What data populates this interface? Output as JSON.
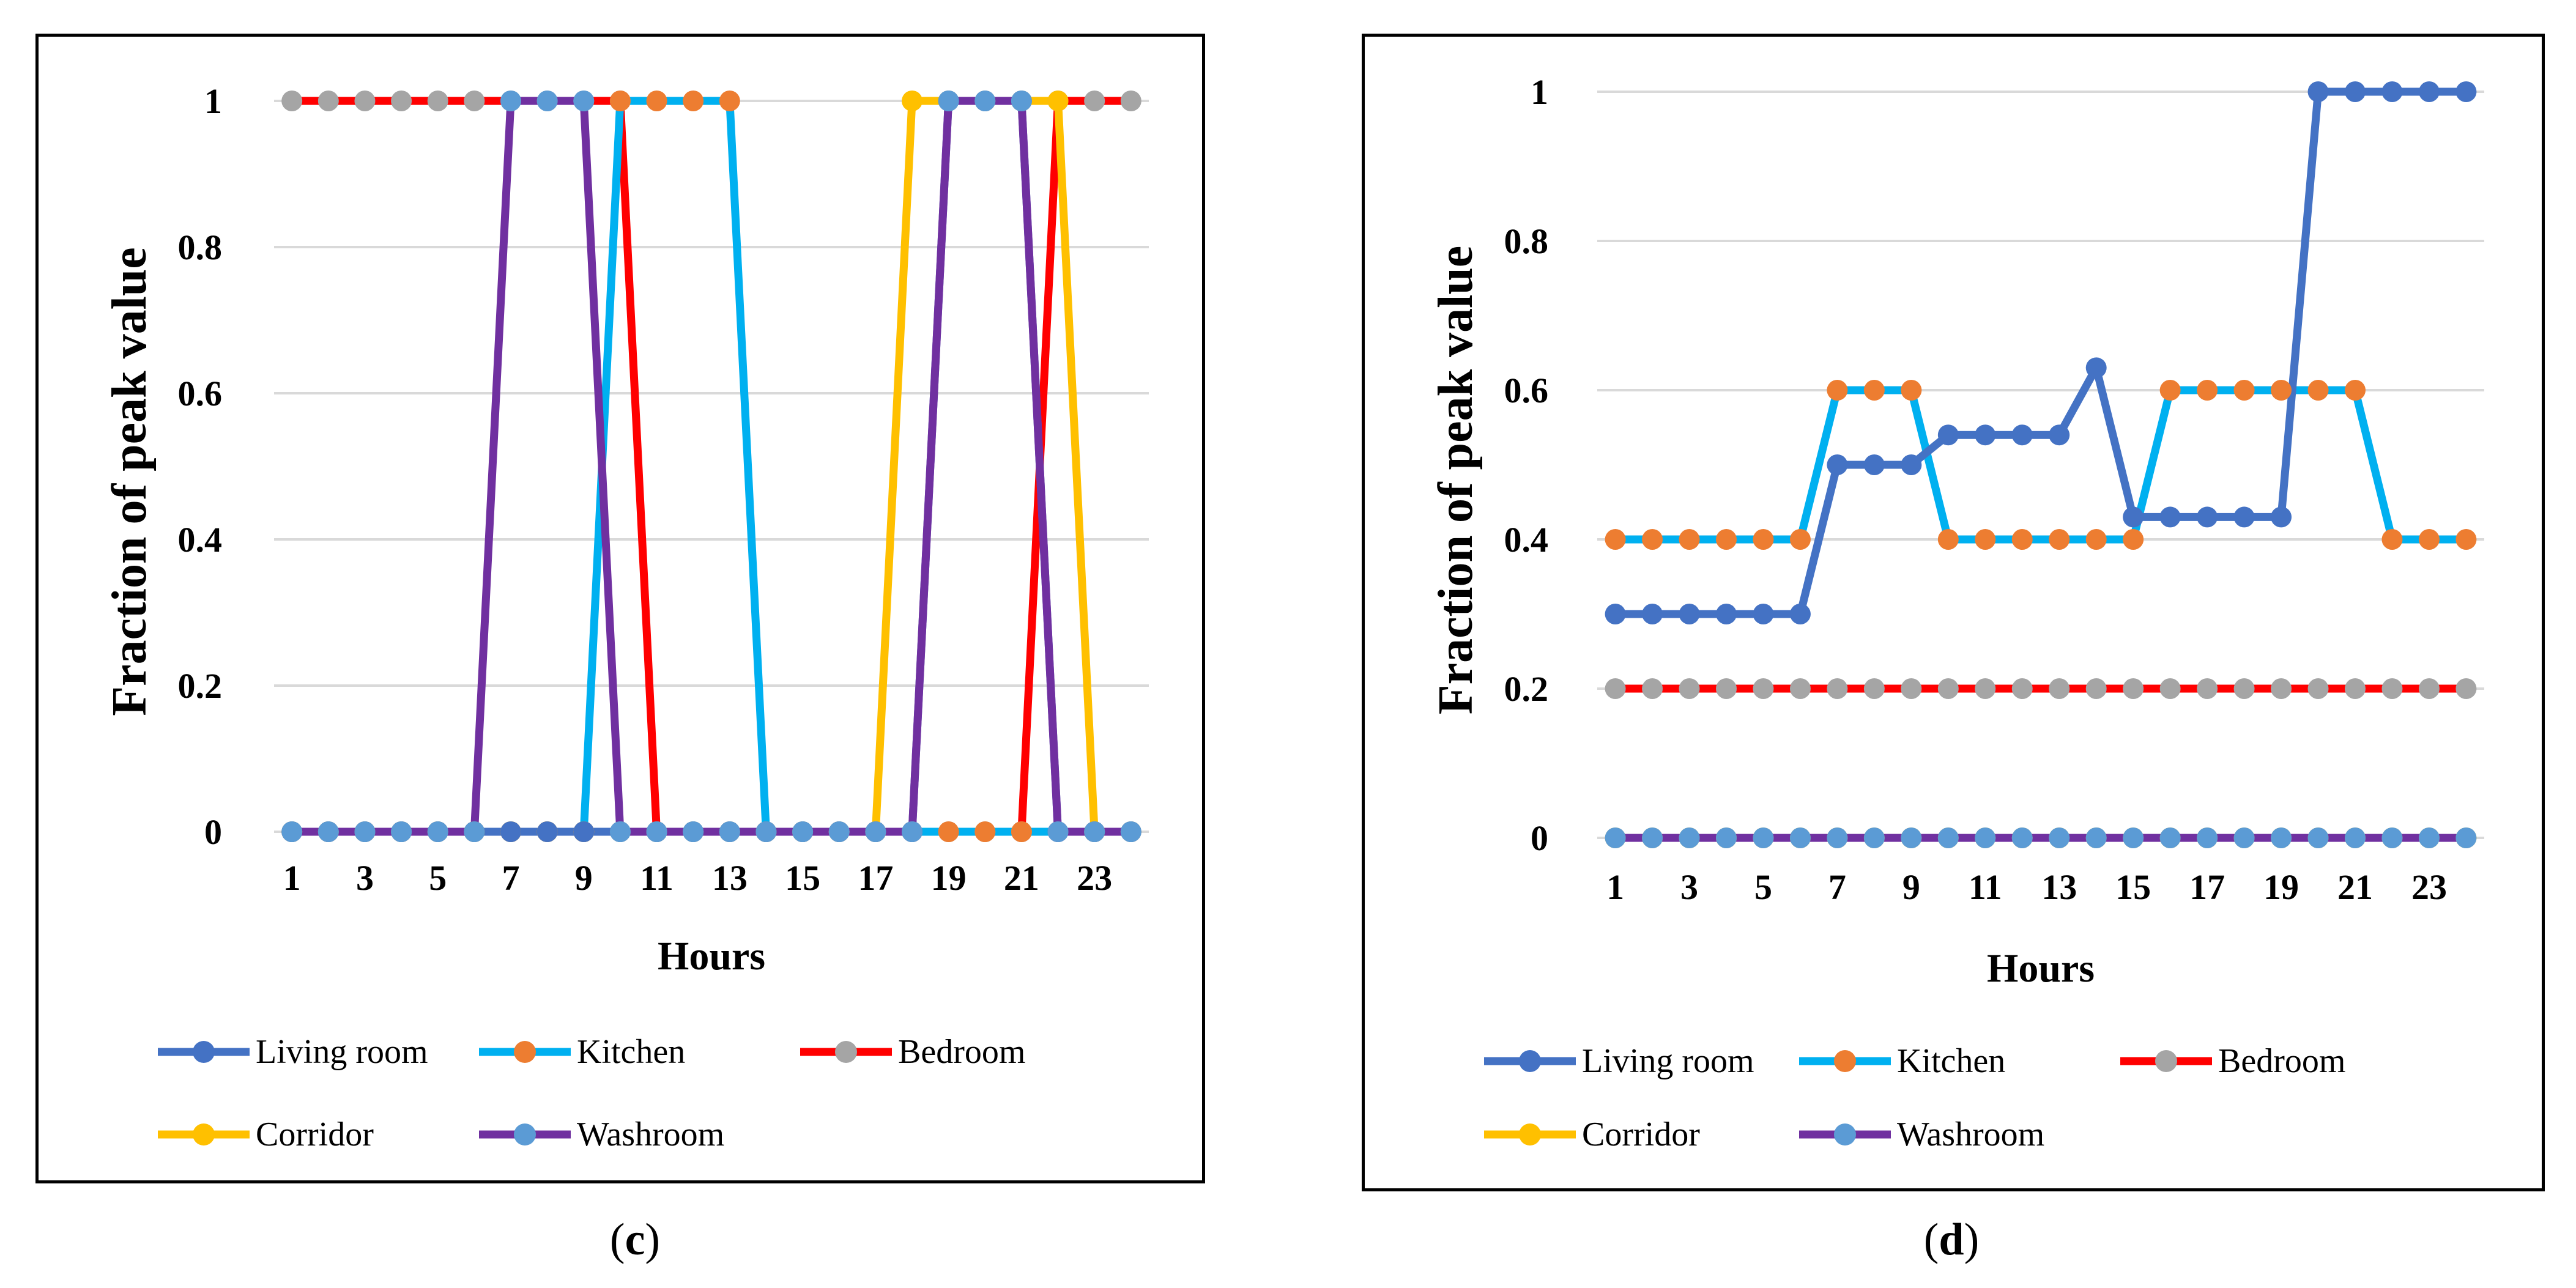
{
  "chart_data": [
    {
      "type": "line",
      "panel": "c",
      "caption": "c",
      "xlabel": "Hours",
      "ylabel": "Fraction of peak value",
      "x": [
        1,
        2,
        3,
        4,
        5,
        6,
        7,
        8,
        9,
        10,
        11,
        12,
        13,
        14,
        15,
        16,
        17,
        18,
        19,
        20,
        21,
        22,
        23,
        24
      ],
      "x_tick_labels": [
        "1",
        "3",
        "5",
        "7",
        "9",
        "11",
        "13",
        "15",
        "17",
        "19",
        "21",
        "23"
      ],
      "x_tick_values": [
        1,
        3,
        5,
        7,
        9,
        11,
        13,
        15,
        17,
        19,
        21,
        23
      ],
      "y_tick_labels": [
        "0",
        "0.2",
        "0.4",
        "0.6",
        "0.8",
        "1"
      ],
      "y_tick_values": [
        0,
        0.2,
        0.4,
        0.6,
        0.8,
        1
      ],
      "ylim": [
        0,
        1
      ],
      "grid": "horizontal",
      "legend_position": "bottom",
      "series": [
        {
          "name": "Bedroom",
          "line_color": "#FF0000",
          "marker_color": "#A5A5A5",
          "values": [
            1,
            1,
            1,
            1,
            1,
            1,
            1,
            1,
            1,
            1,
            0,
            0,
            0,
            0,
            0,
            0,
            0,
            0,
            0,
            0,
            0,
            1,
            1,
            1
          ]
        },
        {
          "name": "Kitchen",
          "line_color": "#00B0F0",
          "marker_color": "#ED7D31",
          "values": [
            0,
            0,
            0,
            0,
            0,
            0,
            0,
            0,
            0,
            1,
            1,
            1,
            1,
            0,
            0,
            0,
            0,
            0,
            0,
            0,
            0,
            0,
            0,
            0
          ]
        },
        {
          "name": "Corridor",
          "line_color": "#FFC000",
          "marker_color": "#FFC000",
          "values": [
            0,
            0,
            0,
            0,
            0,
            0,
            0,
            0,
            0,
            0,
            0,
            0,
            0,
            0,
            0,
            0,
            0,
            1,
            1,
            1,
            1,
            1,
            0,
            0
          ]
        },
        {
          "name": "Living room",
          "line_color": "#4472C4",
          "marker_color": "#4472C4",
          "values": [
            0,
            0,
            0,
            0,
            0,
            0,
            0,
            0,
            0,
            0,
            0,
            0,
            0,
            0,
            0,
            0,
            0,
            0,
            1,
            1,
            1,
            0,
            0,
            0
          ]
        },
        {
          "name": "Washroom",
          "line_color": "#7030A0",
          "marker_color": "#5B9BD5",
          "values": [
            0,
            0,
            0,
            0,
            0,
            0,
            1,
            1,
            1,
            0,
            0,
            0,
            0,
            0,
            0,
            0,
            0,
            0,
            1,
            1,
            1,
            0,
            0,
            0
          ]
        }
      ],
      "legend": [
        "Living room",
        "Kitchen",
        "Bedroom",
        "Corridor",
        "Washroom"
      ]
    },
    {
      "type": "line",
      "panel": "d",
      "caption": "d",
      "xlabel": "Hours",
      "ylabel": "Fraction of peak value",
      "x": [
        1,
        2,
        3,
        4,
        5,
        6,
        7,
        8,
        9,
        10,
        11,
        12,
        13,
        14,
        15,
        16,
        17,
        18,
        19,
        20,
        21,
        22,
        23,
        24
      ],
      "x_tick_labels": [
        "1",
        "3",
        "5",
        "7",
        "9",
        "11",
        "13",
        "15",
        "17",
        "19",
        "21",
        "23"
      ],
      "x_tick_values": [
        1,
        3,
        5,
        7,
        9,
        11,
        13,
        15,
        17,
        19,
        21,
        23
      ],
      "y_tick_labels": [
        "0",
        "0.2",
        "0.4",
        "0.6",
        "0.8",
        "1"
      ],
      "y_tick_values": [
        0,
        0.2,
        0.4,
        0.6,
        0.8,
        1
      ],
      "ylim": [
        0,
        1
      ],
      "grid": "horizontal",
      "legend_position": "bottom",
      "series": [
        {
          "name": "Bedroom",
          "line_color": "#FF0000",
          "marker_color": "#A5A5A5",
          "values": [
            0.2,
            0.2,
            0.2,
            0.2,
            0.2,
            0.2,
            0.2,
            0.2,
            0.2,
            0.2,
            0.2,
            0.2,
            0.2,
            0.2,
            0.2,
            0.2,
            0.2,
            0.2,
            0.2,
            0.2,
            0.2,
            0.2,
            0.2,
            0.2
          ]
        },
        {
          "name": "Corridor",
          "line_color": "#FFC000",
          "marker_color": "#FFC000",
          "values": [
            0,
            0,
            0,
            0,
            0,
            0,
            0,
            0,
            0,
            0,
            0,
            0,
            0,
            0,
            0,
            0,
            0,
            0,
            0,
            0,
            0,
            0,
            0,
            0
          ]
        },
        {
          "name": "Washroom",
          "line_color": "#7030A0",
          "marker_color": "#5B9BD5",
          "values": [
            0,
            0,
            0,
            0,
            0,
            0,
            0,
            0,
            0,
            0,
            0,
            0,
            0,
            0,
            0,
            0,
            0,
            0,
            0,
            0,
            0,
            0,
            0,
            0
          ]
        },
        {
          "name": "Kitchen",
          "line_color": "#00B0F0",
          "marker_color": "#ED7D31",
          "values": [
            0.4,
            0.4,
            0.4,
            0.4,
            0.4,
            0.4,
            0.6,
            0.6,
            0.6,
            0.4,
            0.4,
            0.4,
            0.4,
            0.4,
            0.4,
            0.6,
            0.6,
            0.6,
            0.6,
            0.6,
            0.6,
            0.4,
            0.4,
            0.4
          ]
        },
        {
          "name": "Living room",
          "line_color": "#4472C4",
          "marker_color": "#4472C4",
          "values": [
            0.3,
            0.3,
            0.3,
            0.3,
            0.3,
            0.3,
            0.5,
            0.5,
            0.5,
            0.54,
            0.54,
            0.54,
            0.54,
            0.63,
            0.43,
            0.43,
            0.43,
            0.43,
            0.43,
            1,
            1,
            1,
            1,
            1
          ]
        }
      ],
      "legend": [
        "Living room",
        "Kitchen",
        "Bedroom",
        "Corridor",
        "Washroom"
      ]
    }
  ]
}
